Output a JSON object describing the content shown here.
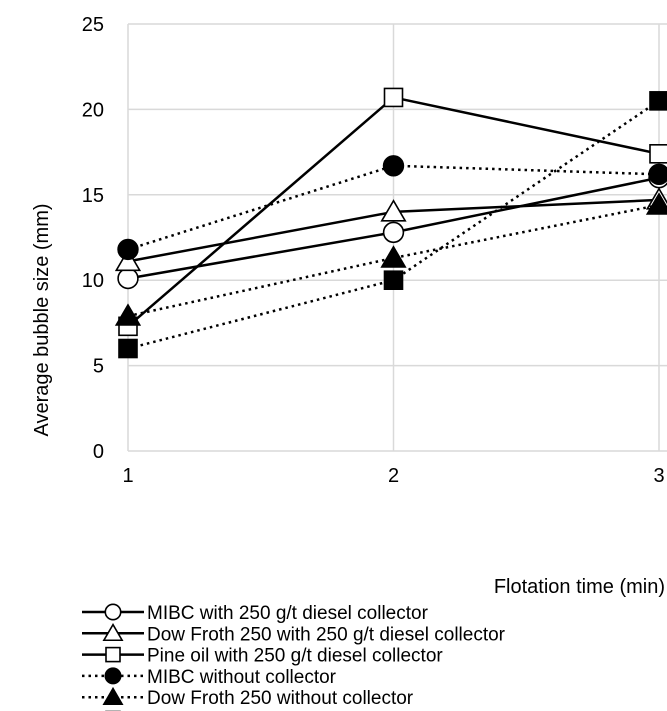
{
  "chart_data": {
    "type": "line",
    "xlabel": "Flotation time (min)",
    "ylabel": "Average bubble size (mm)",
    "x": [
      1,
      2,
      3
    ],
    "x_tick_labels": [
      "1",
      "2",
      "3"
    ],
    "y_tick_labels": [
      "0",
      "5",
      "10",
      "15",
      "20",
      "25"
    ],
    "xlim": [
      1,
      3
    ],
    "ylim": [
      0,
      25
    ],
    "grid": "vertical and horizontal major gridlines",
    "legend_position": "bottom",
    "series": [
      {
        "name": "MIBC with 250 g/t diesel collector",
        "values": [
          10.1,
          12.8,
          16.0
        ],
        "line": "solid",
        "marker": "circle",
        "filled": false
      },
      {
        "name": "Dow Froth 250 with 250 g/t diesel collector",
        "values": [
          11.1,
          14.0,
          14.7
        ],
        "line": "solid",
        "marker": "triangle",
        "filled": false
      },
      {
        "name": "Pine oil with 250 g/t diesel collector",
        "values": [
          7.3,
          20.7,
          17.4
        ],
        "line": "solid",
        "marker": "square",
        "filled": false
      },
      {
        "name": "MIBC without collector",
        "values": [
          11.8,
          16.7,
          16.2
        ],
        "line": "dotted",
        "marker": "circle",
        "filled": true
      },
      {
        "name": "Dow Froth 250 without collector",
        "values": [
          7.9,
          11.3,
          14.4
        ],
        "line": "dotted",
        "marker": "triangle",
        "filled": true
      },
      {
        "name": "Pine oil without collector",
        "values": [
          6.0,
          10.0,
          20.5
        ],
        "line": "dotted",
        "marker": "square",
        "filled": true
      }
    ]
  },
  "colors": {
    "line": "#000000",
    "grid": "#d9d9d9",
    "background": "#ffffff"
  }
}
